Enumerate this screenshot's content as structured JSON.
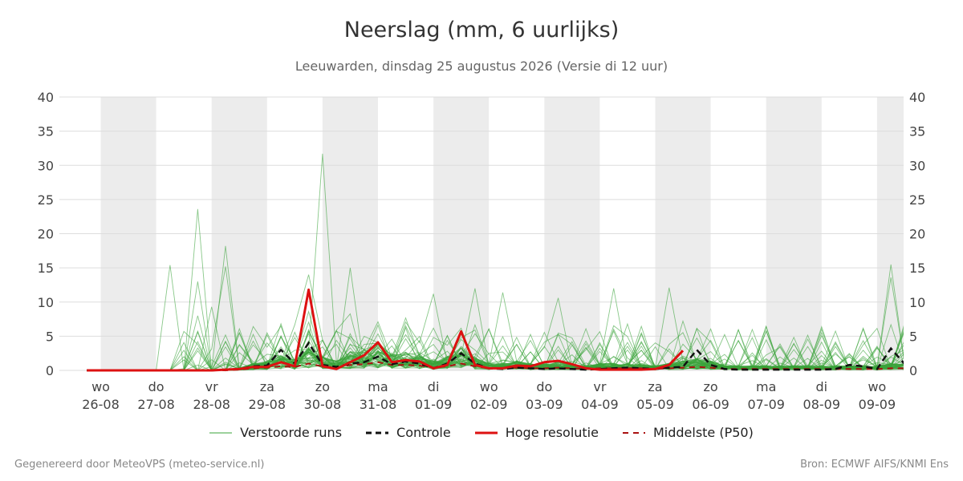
{
  "title": "Neerslag (mm, 6 uurlijks)",
  "subtitle": "Leeuwarden, dinsdag 25 augustus 2026 (Versie di 12 uur)",
  "footer_left": "Gegenereerd door MeteoVPS (meteo-service.nl)",
  "footer_right": "Bron: ECMWF AIFS/KNMI Ens",
  "colors": {
    "perturbed": "#3aa33a",
    "control": "#111111",
    "hires": "#dd1111",
    "median": "#aa1111",
    "weekend_shade": "#ececec",
    "grid": "#dddddd"
  },
  "legend": [
    {
      "label": "Verstoorde runs",
      "style": "thin-green"
    },
    {
      "label": "Controle",
      "style": "dashed-black"
    },
    {
      "label": "Hoge resolutie",
      "style": "thick-red"
    },
    {
      "label": "Middelste (P50)",
      "style": "dashed-darkred"
    }
  ],
  "chart_data": {
    "type": "line",
    "x_unit": "days from wo 26-08 00:00, 6-hourly steps",
    "ylim": [
      0,
      40
    ],
    "yticks": [
      0,
      5,
      10,
      15,
      20,
      25,
      30,
      35,
      40
    ],
    "ylabel": "",
    "xlabel": "",
    "grid": true,
    "legend_position": "bottom",
    "xticks": [
      {
        "day": "wo",
        "date": "26-08"
      },
      {
        "day": "do",
        "date": "27-08"
      },
      {
        "day": "vr",
        "date": "28-08"
      },
      {
        "day": "za",
        "date": "29-08"
      },
      {
        "day": "zo",
        "date": "30-08"
      },
      {
        "day": "ma",
        "date": "31-08"
      },
      {
        "day": "di",
        "date": "01-09"
      },
      {
        "day": "wo",
        "date": "02-09"
      },
      {
        "day": "do",
        "date": "03-09"
      },
      {
        "day": "vr",
        "date": "04-09"
      },
      {
        "day": "za",
        "date": "05-09"
      },
      {
        "day": "zo",
        "date": "06-09"
      },
      {
        "day": "ma",
        "date": "07-09"
      },
      {
        "day": "di",
        "date": "08-09"
      },
      {
        "day": "wo",
        "date": "09-09"
      }
    ],
    "series": [
      {
        "name": "Hoge resolutie",
        "x_start": -0.25,
        "step": 0.25,
        "values": [
          0,
          0,
          0,
          0,
          0,
          0,
          0,
          0,
          0,
          0,
          0.1,
          0.2,
          0.5,
          0.5,
          1.2,
          0.6,
          11.8,
          0.6,
          0.2,
          1.2,
          2.2,
          4.1,
          1.2,
          1.5,
          1.3,
          0.3,
          0.8,
          5.7,
          0.8,
          0.3,
          0.3,
          0.7,
          0.6,
          1.2,
          1.4,
          0.9,
          0.3,
          0.1,
          0.1,
          0.1,
          0.1,
          0.2,
          0.8,
          2.9
        ]
      },
      {
        "name": "Controle",
        "x_start": -0.25,
        "step": 0.25,
        "values": [
          0,
          0,
          0,
          0,
          0,
          0,
          0,
          0,
          0,
          0,
          0.1,
          0.2,
          0.6,
          0.7,
          3.0,
          1.0,
          4.0,
          0.8,
          0.5,
          1.0,
          1.2,
          2.0,
          0.9,
          1.3,
          1.0,
          0.3,
          1.0,
          2.5,
          1.0,
          0.3,
          0.2,
          0.4,
          0.3,
          0.2,
          0.3,
          0.2,
          0.1,
          0.2,
          0.3,
          0.4,
          0.3,
          0.2,
          0.4,
          0.5,
          3.0,
          0.8,
          0.2,
          0.1,
          0.1,
          0.1,
          0.1,
          0.1,
          0.1,
          0.1,
          0.2,
          0.8,
          0.6,
          0.2,
          3.2,
          0.9,
          0.2,
          0.1,
          0.1,
          0.1,
          0.1,
          0.1,
          0.1,
          0.1,
          0.1,
          0.1,
          0.2,
          0.2
        ]
      },
      {
        "name": "Middelste (P50)",
        "x_start": -0.25,
        "step": 0.25,
        "values": [
          0,
          0,
          0,
          0,
          0,
          0,
          0,
          0,
          0,
          0,
          0,
          0.1,
          0.3,
          0.4,
          0.6,
          0.5,
          1.0,
          0.6,
          0.4,
          0.8,
          0.9,
          1.2,
          0.8,
          0.8,
          0.7,
          0.4,
          0.6,
          1.0,
          0.6,
          0.3,
          0.3,
          0.4,
          0.3,
          0.3,
          0.4,
          0.3,
          0.2,
          0.3,
          0.3,
          0.3,
          0.3,
          0.2,
          0.3,
          0.4,
          0.5,
          0.4,
          0.2,
          0.2,
          0.2,
          0.2,
          0.2,
          0.2,
          0.2,
          0.2,
          0.2,
          0.2,
          0.2,
          0.2,
          0.3,
          0.3,
          0.2,
          0.2,
          0.2,
          0.2,
          0.2,
          0.2,
          0.2,
          0.2,
          0.2,
          0.2,
          0.2,
          0.2
        ]
      },
      {
        "name": "Verstoorde runs",
        "x_start": -0.25,
        "step": 0.25,
        "members": 50,
        "peaks": [
          {
            "x": 1.75,
            "value": 23.6
          },
          {
            "x": 1.75,
            "value": 13.0
          },
          {
            "x": 2.25,
            "value": 18.2
          },
          {
            "x": 1.25,
            "value": 15.4
          },
          {
            "x": 2.0,
            "value": 9.3
          },
          {
            "x": 2.25,
            "value": 15.2
          },
          {
            "x": 4.0,
            "value": 31.7
          },
          {
            "x": 4.5,
            "value": 15.0
          },
          {
            "x": 3.75,
            "value": 14.0
          },
          {
            "x": 6.0,
            "value": 11.2
          },
          {
            "x": 6.75,
            "value": 12.0
          },
          {
            "x": 7.25,
            "value": 11.4
          },
          {
            "x": 8.25,
            "value": 10.6
          },
          {
            "x": 9.25,
            "value": 12.0
          },
          {
            "x": 10.25,
            "value": 12.1
          },
          {
            "x": 14.25,
            "value": 15.5
          },
          {
            "x": 14.25,
            "value": 13.6
          },
          {
            "x": 1.75,
            "value": 8.0
          }
        ]
      }
    ]
  }
}
